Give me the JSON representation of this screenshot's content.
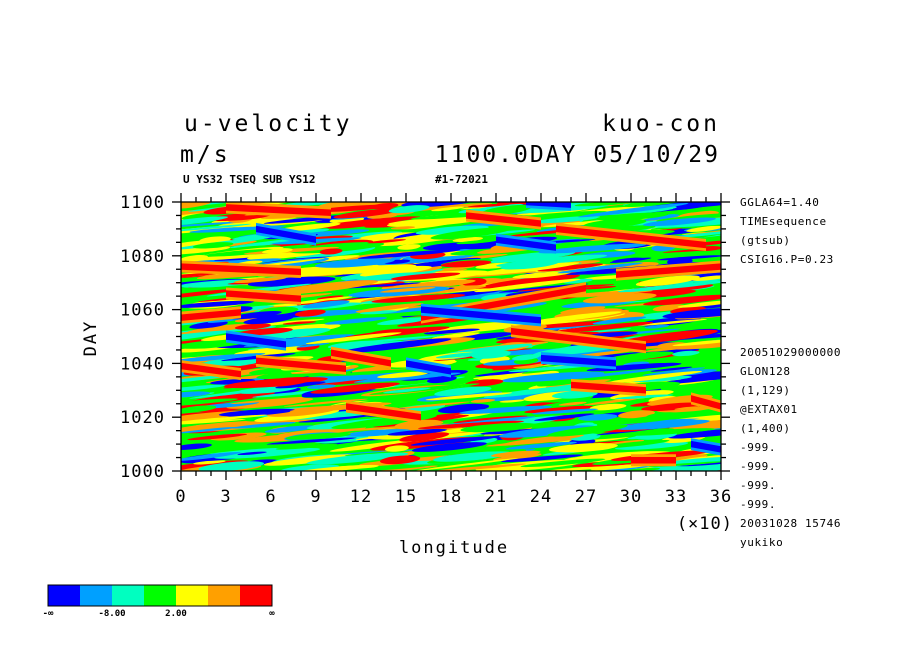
{
  "header": {
    "variable": "u-velocity",
    "units": "m/s",
    "experiment": "kuo-con",
    "time_stamp": "1100.0DAY 05/10/29",
    "subtitle": "U YS32 TSEQ SUB YS12",
    "run_id": "#1-72021"
  },
  "side_info": {
    "top": [
      "GGLA64=1.40",
      "TIMEsequence",
      "(gtsub)",
      "CSIG16.P=0.23"
    ],
    "bottom": [
      "20051029000000",
      "GLON128",
      "(1,129)",
      "@EXTAX01",
      "(1,400)",
      "-999.",
      "-999.",
      "-999.",
      "-999.",
      "20031028  15746",
      "yukiko"
    ]
  },
  "colorbar": {
    "colors": [
      "#0000ff",
      "#00a0ff",
      "#00ffc0",
      "#00ff00",
      "#ffff00",
      "#ffa000",
      "#ff0000"
    ],
    "labels": [
      "-∞",
      "-8.00",
      "2.00",
      "∞"
    ]
  },
  "chart_data": {
    "type": "heatmap",
    "title": "u-velocity",
    "xlabel": "longitude",
    "xscale_note": "(×10)",
    "ylabel": "DAY",
    "xlim": [
      0,
      36
    ],
    "ylim": [
      1000,
      1100
    ],
    "x_ticks": [
      0,
      3,
      6,
      9,
      12,
      15,
      18,
      21,
      24,
      27,
      30,
      33,
      36
    ],
    "y_ticks": [
      1000,
      1020,
      1040,
      1060,
      1080,
      1100
    ],
    "color_levels": 7,
    "bands": [
      {
        "level": 6,
        "day_start": 1076,
        "day_end": 1074,
        "lon_start": 0,
        "lon_end": 8
      },
      {
        "level": 6,
        "day_start": 1057,
        "day_end": 1068,
        "lon_start": 16,
        "lon_end": 27
      },
      {
        "level": 6,
        "day_start": 1073,
        "day_end": 1076,
        "lon_start": 29,
        "lon_end": 36
      },
      {
        "level": 6,
        "day_start": 1066,
        "day_end": 1064,
        "lon_start": 3,
        "lon_end": 8
      },
      {
        "level": 6,
        "day_start": 1057,
        "day_end": 1059,
        "lon_start": 0,
        "lon_end": 4
      },
      {
        "level": 6,
        "day_start": 1052,
        "day_end": 1046,
        "lon_start": 22,
        "lon_end": 31
      },
      {
        "level": 6,
        "day_start": 1039,
        "day_end": 1036,
        "lon_start": 0,
        "lon_end": 4
      },
      {
        "level": 6,
        "day_start": 1041,
        "day_end": 1038,
        "lon_start": 5,
        "lon_end": 11
      },
      {
        "level": 6,
        "day_start": 1044,
        "day_end": 1040,
        "lon_start": 10,
        "lon_end": 14
      },
      {
        "level": 6,
        "day_start": 1032,
        "day_end": 1030,
        "lon_start": 26,
        "lon_end": 31
      },
      {
        "level": 6,
        "day_start": 1027,
        "day_end": 1024,
        "lon_start": 34,
        "lon_end": 36
      },
      {
        "level": 6,
        "day_start": 1024,
        "day_end": 1020,
        "lon_start": 11,
        "lon_end": 16
      },
      {
        "level": 6,
        "day_start": 1098,
        "day_end": 1096,
        "lon_start": 3,
        "lon_end": 10
      },
      {
        "level": 6,
        "day_start": 1090,
        "day_end": 1084,
        "lon_start": 25,
        "lon_end": 35
      },
      {
        "level": 6,
        "day_start": 1095,
        "day_end": 1092,
        "lon_start": 19,
        "lon_end": 24
      },
      {
        "level": 6,
        "day_start": 1004,
        "day_end": 1004,
        "lon_start": 30,
        "lon_end": 33
      },
      {
        "level": 0,
        "day_start": 1086,
        "day_end": 1083,
        "lon_start": 21,
        "lon_end": 25
      },
      {
        "level": 0,
        "day_start": 1060,
        "day_end": 1056,
        "lon_start": 16,
        "lon_end": 24
      },
      {
        "level": 0,
        "day_start": 1040,
        "day_end": 1037,
        "lon_start": 15,
        "lon_end": 18
      },
      {
        "level": 0,
        "day_start": 1042,
        "day_end": 1040,
        "lon_start": 24,
        "lon_end": 29
      },
      {
        "level": 0,
        "day_start": 1010,
        "day_end": 1008,
        "lon_start": 34,
        "lon_end": 36
      },
      {
        "level": 0,
        "day_start": 1100,
        "day_end": 1099,
        "lon_start": 23,
        "lon_end": 26
      },
      {
        "level": 0,
        "day_start": 1090,
        "day_end": 1086,
        "lon_start": 5,
        "lon_end": 9
      },
      {
        "level": 0,
        "day_start": 1050,
        "day_end": 1047,
        "lon_start": 3,
        "lon_end": 7
      }
    ]
  }
}
